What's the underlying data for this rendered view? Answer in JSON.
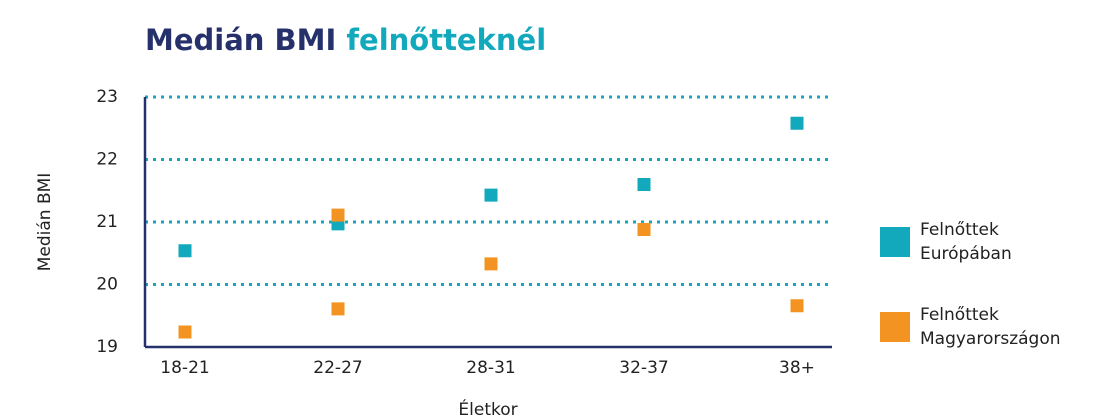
{
  "chart_data": {
    "type": "scatter",
    "title": {
      "main": "Medián BMI",
      "highlight": "felnőtteknél"
    },
    "x_label": "Életkor",
    "y_label": "Medián BMI",
    "categories": [
      "18-21",
      "22-27",
      "28-31",
      "32-37",
      "38+"
    ],
    "series": [
      {
        "name": "Felnőttek Európában",
        "color": "#12a9bd",
        "x": [
          0,
          1,
          2,
          3,
          4
        ],
        "values": [
          20.54,
          20.97,
          21.43,
          21.6,
          22.58
        ]
      },
      {
        "name": "Felnőttek Magyarországon",
        "color": "#f39422",
        "x": [
          0,
          1,
          1,
          2,
          3,
          4
        ],
        "values": [
          19.24,
          21.11,
          19.61,
          20.33,
          20.88,
          19.66
        ]
      }
    ],
    "ylim": [
      19,
      23
    ],
    "yticks": [
      19,
      20,
      21,
      22,
      23
    ],
    "grid": true,
    "legend": "right"
  }
}
